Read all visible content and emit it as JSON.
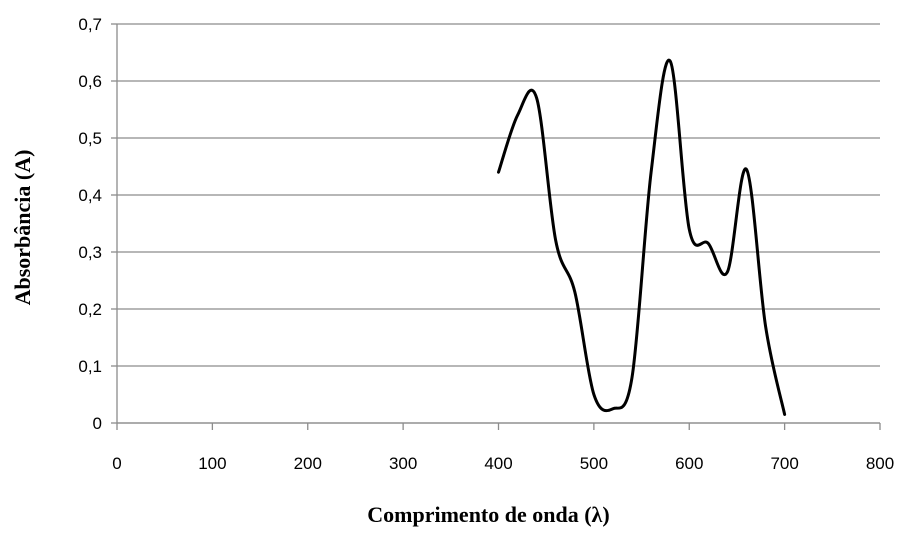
{
  "chart_data": {
    "type": "line",
    "title": "",
    "xlabel": "Comprimento de onda (λ)",
    "ylabel": "Absorbância (A)",
    "xlim": [
      0,
      800
    ],
    "ylim": [
      0,
      0.7
    ],
    "x_ticks": [
      0,
      100,
      200,
      300,
      400,
      500,
      600,
      700,
      800
    ],
    "y_ticks": [
      0,
      0.1,
      0.2,
      0.3,
      0.4,
      0.5,
      0.6,
      0.7
    ],
    "x_tick_labels": [
      "0",
      "100",
      "200",
      "300",
      "400",
      "500",
      "600",
      "700",
      "800"
    ],
    "y_tick_labels": [
      "0",
      "0,1",
      "0,2",
      "0,3",
      "0,4",
      "0,5",
      "0,6",
      "0,7"
    ],
    "grid": "horizontal",
    "legend": "none",
    "series": [
      {
        "color": "#000000",
        "x": [
          400,
          420,
          440,
          460,
          480,
          500,
          520,
          540,
          560,
          580,
          600,
          620,
          640,
          660,
          680,
          700
        ],
        "values": [
          0.44,
          0.54,
          0.57,
          0.32,
          0.23,
          0.05,
          0.025,
          0.08,
          0.44,
          0.635,
          0.34,
          0.315,
          0.265,
          0.445,
          0.17,
          0.015
        ]
      }
    ]
  }
}
